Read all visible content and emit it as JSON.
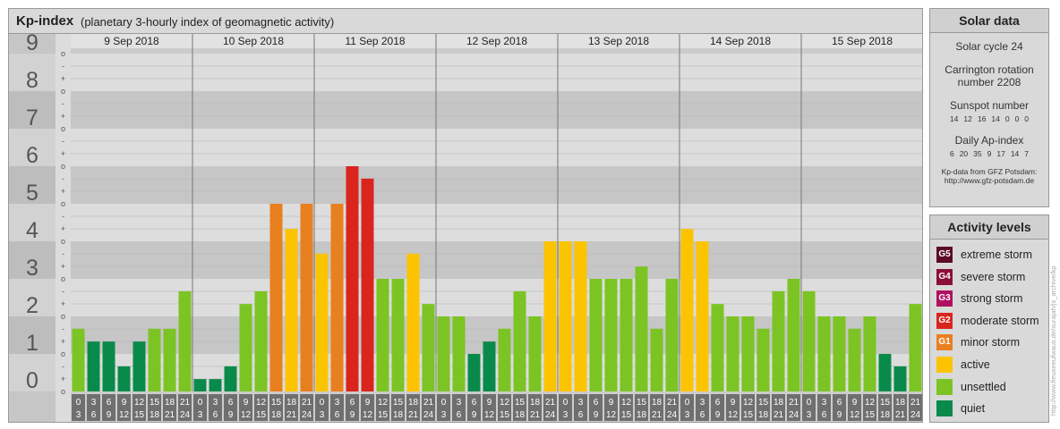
{
  "title": "Kp-index",
  "subtitle": "(planetary 3-hourly index of geomagnetic activity)",
  "chart_data": {
    "type": "bar",
    "ylim": [
      0,
      9
    ],
    "y_ticks": [
      "0",
      "1",
      "2",
      "3",
      "4",
      "5",
      "6",
      "7",
      "8",
      "9"
    ],
    "minor_ticks": [
      "o",
      "+",
      "-"
    ],
    "days": [
      "9 Sep 2018",
      "10 Sep 2018",
      "11 Sep 2018",
      "12 Sep 2018",
      "13 Sep 2018",
      "14 Sep 2018",
      "15 Sep 2018"
    ],
    "hour_labels_top": [
      "0",
      "3",
      "6",
      "9",
      "12",
      "15",
      "18",
      "21"
    ],
    "hour_labels_bottom": [
      "3",
      "6",
      "9",
      "12",
      "15",
      "18",
      "21",
      "24"
    ],
    "values": [
      1.67,
      1.33,
      1.33,
      0.67,
      1.33,
      1.67,
      1.67,
      2.67,
      0.33,
      0.33,
      0.67,
      2.33,
      2.67,
      5.0,
      4.33,
      5.0,
      3.67,
      5.0,
      6.0,
      5.67,
      3.0,
      3.0,
      3.67,
      2.33,
      2.0,
      2.0,
      1.0,
      1.33,
      1.67,
      2.67,
      2.0,
      4.0,
      4.0,
      4.0,
      3.0,
      3.0,
      3.0,
      3.33,
      1.67,
      3.0,
      4.33,
      4.0,
      2.33,
      2.0,
      2.0,
      1.67,
      2.67,
      3.0,
      2.67,
      2.0,
      2.0,
      1.67,
      2.0,
      1.0,
      0.67,
      2.33
    ]
  },
  "solar": {
    "title": "Solar data",
    "cycle": "Solar cycle 24",
    "carrington_1": "Carrington rotation",
    "carrington_2": "number 2208",
    "sunspot_title": "Sunspot number",
    "sunspot_values": [
      "14",
      "12",
      "16",
      "14",
      "0",
      "0",
      "0"
    ],
    "ap_title": "Daily Ap-index",
    "ap_values": [
      "6",
      "20",
      "35",
      "9",
      "17",
      "14",
      "7"
    ],
    "source_1": "Kp-data from GFZ Potsdam:",
    "source_2": "http://www.gfz-potsdam.de"
  },
  "legend": {
    "title": "Activity levels",
    "items": [
      {
        "badge": "G5",
        "label": "extreme storm",
        "color": "#5c0a28"
      },
      {
        "badge": "G4",
        "label": "severe storm",
        "color": "#8a0f3a"
      },
      {
        "badge": "G3",
        "label": "strong storm",
        "color": "#b01060"
      },
      {
        "badge": "G2",
        "label": "moderate storm",
        "color": "#d9251e"
      },
      {
        "badge": "G1",
        "label": "minor storm",
        "color": "#e8801f"
      },
      {
        "badge": "",
        "label": "active",
        "color": "#fcc400"
      },
      {
        "badge": "",
        "label": "unsettled",
        "color": "#7bc424"
      },
      {
        "badge": "",
        "label": "quiet",
        "color": "#0a8a4a"
      }
    ]
  },
  "watermark": "http://www.fieuseeufwaus.de/surajah/js_archive/kp"
}
